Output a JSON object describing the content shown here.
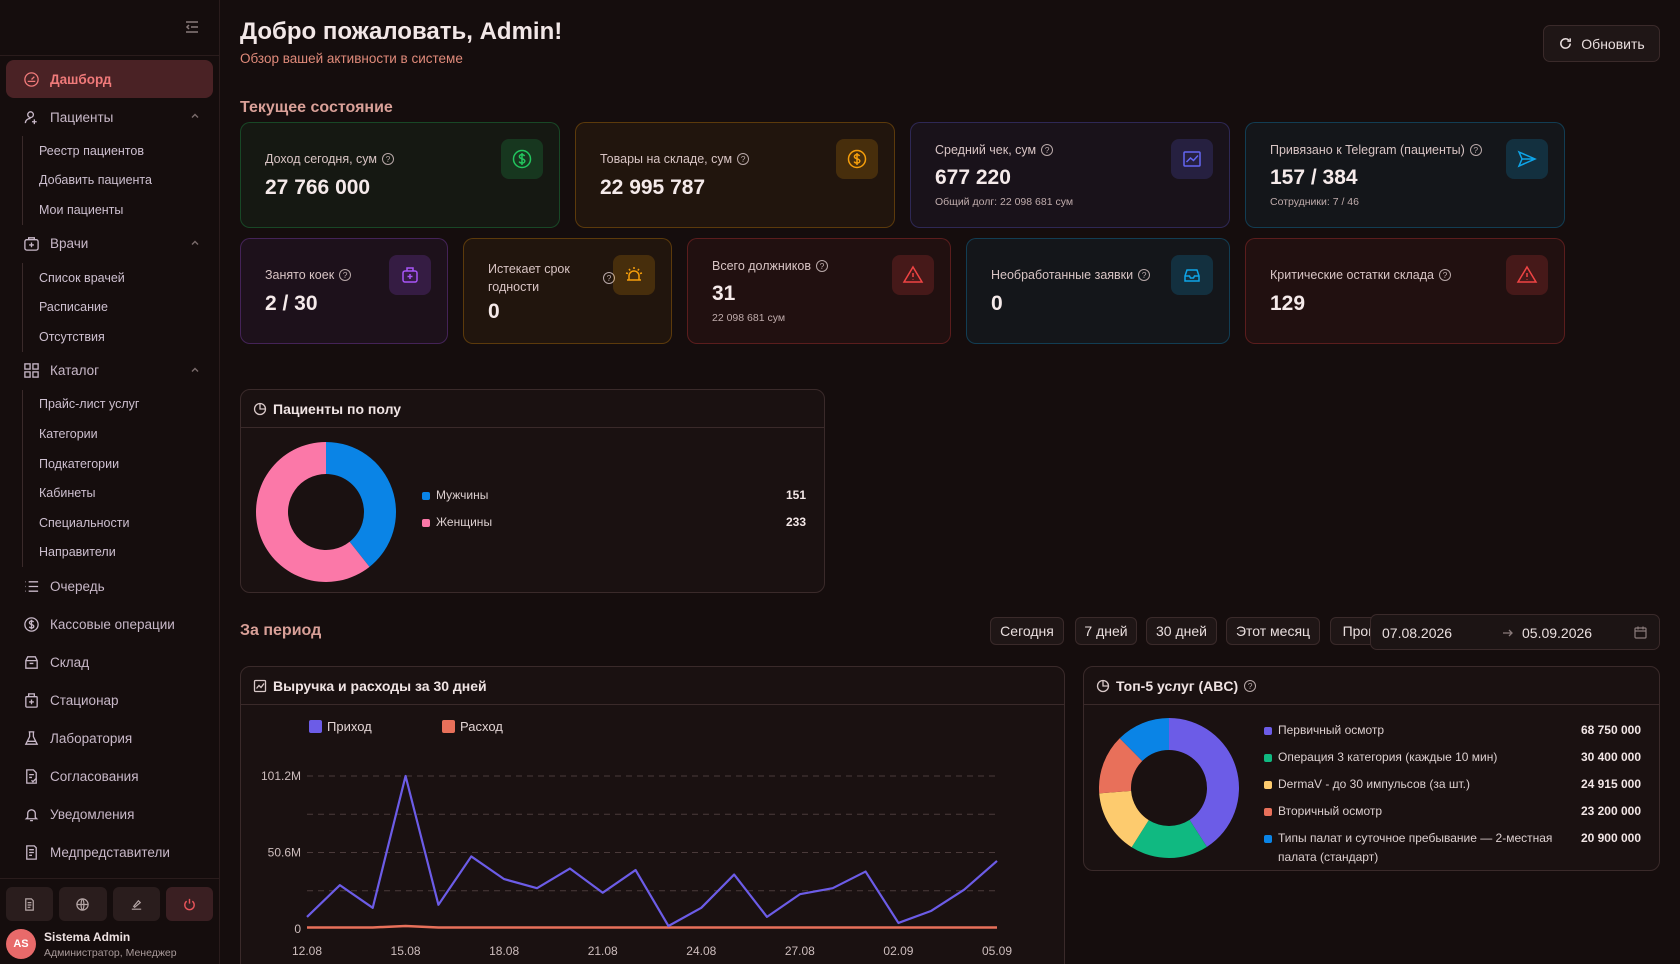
{
  "sidebar": {
    "nav": [
      {
        "label": "Дашборд",
        "icon": "dashboard-icon",
        "active": true
      },
      {
        "label": "Пациенты",
        "icon": "users-icon",
        "expandable": true,
        "children": [
          "Реестр пациентов",
          "Добавить пациента",
          "Мои пациенты"
        ]
      },
      {
        "label": "Врачи",
        "icon": "doctor-case-icon",
        "expandable": true,
        "children": [
          "Список врачей",
          "Расписание",
          "Отсутствия"
        ]
      },
      {
        "label": "Каталог",
        "icon": "grid-icon",
        "expandable": true,
        "children": [
          "Прайс-лист услуг",
          "Категории",
          "Подкатегории",
          "Кабинеты",
          "Специальности",
          "Направители"
        ]
      },
      {
        "label": "Очередь",
        "icon": "list-icon"
      },
      {
        "label": "Кассовые операции",
        "icon": "dollar-icon"
      },
      {
        "label": "Склад",
        "icon": "box-icon"
      },
      {
        "label": "Стационар",
        "icon": "hospital-icon"
      },
      {
        "label": "Лаборатория",
        "icon": "flask-icon"
      },
      {
        "label": "Согласования",
        "icon": "doc-check-icon"
      },
      {
        "label": "Уведомления",
        "icon": "bell-icon"
      },
      {
        "label": "Медпредставители",
        "icon": "doc-list-icon"
      }
    ],
    "user": {
      "initials": "AS",
      "name": "Sistema Admin",
      "role": "Администратор, Менеджер"
    }
  },
  "header": {
    "title": "Добро пожаловать, Admin!",
    "subtitle": "Обзор вашей активности в системе",
    "refresh_label": "Обновить"
  },
  "current": {
    "title": "Текущее состояние",
    "row1": [
      {
        "label": "Доход сегодня, сум",
        "value": "27 766 000",
        "note": "",
        "icon": "dollar-icon",
        "accent": "#22c55e"
      },
      {
        "label": "Товары на складе, сум",
        "value": "22 995 787",
        "note": "",
        "icon": "dollar-icon",
        "accent": "#f59e0b"
      },
      {
        "label": "Средний чек, сум",
        "value": "677 220",
        "note": "Общий долг: 22 098 681 сум",
        "icon": "chart-line-icon",
        "accent": "#6366f1"
      },
      {
        "label": "Привязано к Telegram (пациенты)",
        "value": "157 / 384",
        "note": "Сотрудники: 7 / 46",
        "icon": "send-icon",
        "accent": "#0ea5e9"
      }
    ],
    "row2": [
      {
        "label": "Занято коек",
        "value": "2 / 30",
        "note": "",
        "icon": "bed-plus-icon",
        "accent": "#a855f7"
      },
      {
        "label": "Истекает срок годности",
        "value": "0",
        "note": "",
        "icon": "alarm-icon",
        "accent": "#f59e0b"
      },
      {
        "label": "Всего должников",
        "value": "31",
        "note": "22 098 681 сум",
        "icon": "warning-icon",
        "accent": "#ef4444"
      },
      {
        "label": "Необработанные заявки",
        "value": "0",
        "note": "",
        "icon": "inbox-icon",
        "accent": "#0ea5e9"
      },
      {
        "label": "Критические остатки склада",
        "value": "129",
        "note": "",
        "icon": "warning-icon",
        "accent": "#ef4444"
      }
    ]
  },
  "gender_panel": {
    "title": "Пациенты по полу",
    "chart_data": {
      "type": "pie",
      "categories": [
        "Мужчины",
        "Женщины"
      ],
      "values": [
        151,
        233
      ],
      "colors": [
        "#0a84e6",
        "#fb78a8"
      ]
    }
  },
  "period": {
    "title": "За период",
    "ranges": [
      "Сегодня",
      "7 дней",
      "30 дней",
      "Этот месяц",
      "Прошлый месяц"
    ],
    "date_from": "07.08.2026",
    "date_to": "05.09.2026"
  },
  "revenue_panel": {
    "title": "Выручка и расходы за 30 дней",
    "chart_data": {
      "type": "line",
      "x_ticks": [
        "12.08",
        "15.08",
        "18.08",
        "21.08",
        "24.08",
        "27.08",
        "02.09",
        "05.09"
      ],
      "y_ticks": [
        "101.2M",
        "50.6M",
        "0"
      ],
      "ylim": [
        0,
        101.2
      ],
      "grid": true,
      "legend": "top-left",
      "series": [
        {
          "name": "Приход",
          "color": "#6c5ce7",
          "values": [
            8,
            29,
            14,
            101.2,
            16,
            48,
            33,
            27,
            40,
            24,
            39,
            2,
            14,
            36,
            8,
            23,
            27,
            38,
            4,
            12,
            26,
            45
          ]
        },
        {
          "name": "Расход",
          "color": "#e8705a",
          "values": [
            1,
            1,
            1,
            2,
            1,
            1,
            1,
            1,
            1,
            1,
            1,
            1,
            1,
            1,
            1,
            1,
            1,
            1,
            1,
            1,
            1,
            1
          ]
        }
      ]
    }
  },
  "top_services": {
    "title": "Топ-5 услуг (ABC)",
    "chart_data": {
      "type": "pie",
      "categories": [
        "Первичный осмотр",
        "Операция 3 категория (каждые 10 мин)",
        "DermaV - до 30 импульсов (за шт.)",
        "Вторичный осмотр",
        "Типы палат и суточное пребывание — 2-местная палата (стандарт)"
      ],
      "values": [
        68750000,
        30400000,
        24915000,
        23200000,
        20900000
      ],
      "value_labels": [
        "68 750 000",
        "30 400 000",
        "24 915 000",
        "23 200 000",
        "20 900 000"
      ],
      "colors": [
        "#6c5ce7",
        "#10b981",
        "#fdcb6e",
        "#e8705a",
        "#0a84e6"
      ]
    }
  }
}
